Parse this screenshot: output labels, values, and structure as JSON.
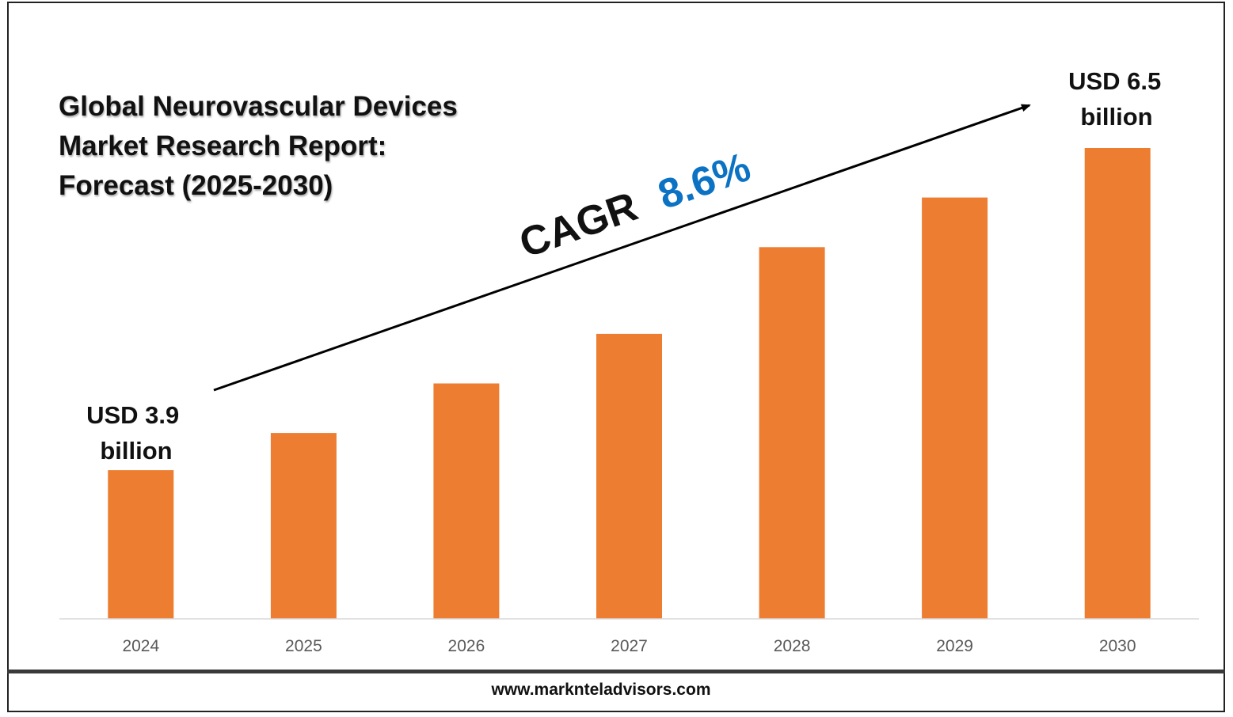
{
  "title_lines": [
    "Global Neurovascular Devices",
    "Market Research Report:",
    "Forecast (2025-2030)"
  ],
  "footer": "www.marknteladvisors.com",
  "cagr": {
    "label": "CAGR",
    "value": "8.6%",
    "value_color": "#0b72c4"
  },
  "annotations": {
    "start": [
      "USD 3.9",
      "billion"
    ],
    "end": [
      "USD 6.5",
      "billion"
    ]
  },
  "colors": {
    "bar": "#ed7d31",
    "axis": "#d9d9d9",
    "tick_text": "#595959"
  },
  "chart_data": {
    "type": "bar",
    "categories": [
      "2024",
      "2025",
      "2026",
      "2027",
      "2028",
      "2029",
      "2030"
    ],
    "values": [
      3.9,
      4.2,
      4.6,
      5.0,
      5.7,
      6.1,
      6.5
    ],
    "ylim": [
      2.7,
      6.7
    ],
    "grid": false,
    "legend": "none"
  }
}
